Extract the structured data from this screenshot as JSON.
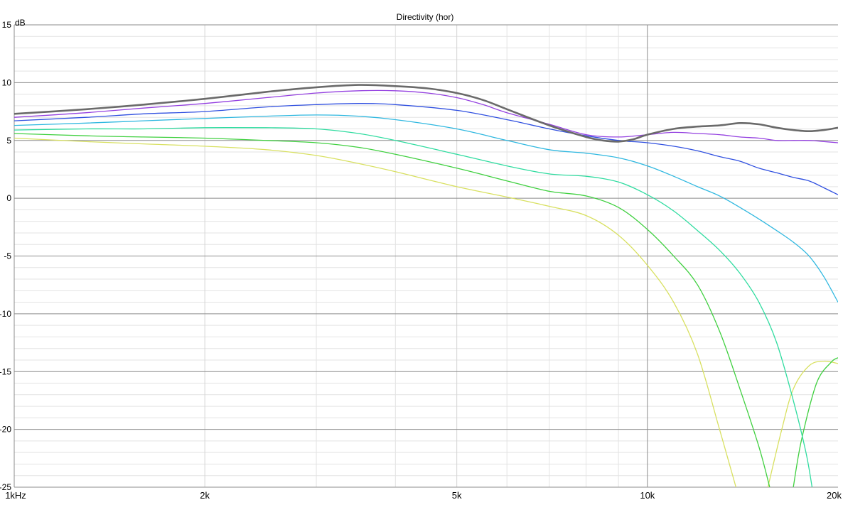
{
  "chart_data": {
    "type": "line",
    "title": "Directivity (hor)",
    "ylabel": "dB",
    "xscale": "log",
    "xlim": [
      1000,
      20000
    ],
    "ylim": [
      -25,
      15
    ],
    "grid": true,
    "y_ticks": [
      {
        "value": 15,
        "label": "15"
      },
      {
        "value": 10,
        "label": "10"
      },
      {
        "value": 5,
        "label": "5"
      },
      {
        "value": 0,
        "label": "0"
      },
      {
        "value": -5,
        "label": "-5"
      },
      {
        "value": -10,
        "label": "-10"
      },
      {
        "value": -15,
        "label": "-15"
      },
      {
        "value": -20,
        "label": "-20"
      },
      {
        "value": -25,
        "label": "-25"
      }
    ],
    "x_ticks": [
      {
        "value": 1000,
        "label": "1kHz"
      },
      {
        "value": 2000,
        "label": "2k"
      },
      {
        "value": 5000,
        "label": "5k"
      },
      {
        "value": 10000,
        "label": "10k"
      },
      {
        "value": 20000,
        "label": "20k"
      }
    ],
    "series": [
      {
        "color": "#d8e060",
        "width": 1.3,
        "points": [
          [
            1000,
            5.2
          ],
          [
            1300,
            4.9
          ],
          [
            1600,
            4.7
          ],
          [
            2000,
            4.5
          ],
          [
            2500,
            4.2
          ],
          [
            3000,
            3.7
          ],
          [
            3500,
            3.0
          ],
          [
            4000,
            2.3
          ],
          [
            5000,
            1.0
          ],
          [
            6000,
            0.1
          ],
          [
            7000,
            -0.7
          ],
          [
            8000,
            -1.5
          ],
          [
            9000,
            -3.2
          ],
          [
            10000,
            -5.8
          ],
          [
            11000,
            -9.0
          ],
          [
            12000,
            -13.5
          ],
          [
            13000,
            -20.0
          ],
          [
            13800,
            -25.0
          ]
        ]
      },
      {
        "color": "#d8e060",
        "width": 1.3,
        "points": [
          [
            15500,
            -25.0
          ],
          [
            16300,
            -20.0
          ],
          [
            17000,
            -16.5
          ],
          [
            18000,
            -14.5
          ],
          [
            19000,
            -14.1
          ],
          [
            20000,
            -14.3
          ]
        ]
      },
      {
        "color": "#40d040",
        "width": 1.3,
        "points": [
          [
            1000,
            5.6
          ],
          [
            1300,
            5.4
          ],
          [
            1600,
            5.3
          ],
          [
            2000,
            5.2
          ],
          [
            2500,
            5.0
          ],
          [
            3000,
            4.8
          ],
          [
            3500,
            4.4
          ],
          [
            4000,
            3.8
          ],
          [
            5000,
            2.6
          ],
          [
            6000,
            1.5
          ],
          [
            7000,
            0.6
          ],
          [
            8000,
            0.2
          ],
          [
            9000,
            -0.8
          ],
          [
            10000,
            -2.7
          ],
          [
            11000,
            -5.0
          ],
          [
            12000,
            -7.5
          ],
          [
            13000,
            -11.5
          ],
          [
            14000,
            -16.5
          ],
          [
            15000,
            -21.5
          ],
          [
            15600,
            -25.0
          ]
        ]
      },
      {
        "color": "#40d040",
        "width": 1.3,
        "points": [
          [
            17000,
            -25.0
          ],
          [
            17500,
            -21.0
          ],
          [
            18500,
            -16.0
          ],
          [
            19500,
            -14.2
          ],
          [
            20000,
            -13.8
          ]
        ]
      },
      {
        "color": "#30dca0",
        "width": 1.3,
        "points": [
          [
            1000,
            5.9
          ],
          [
            1300,
            6.0
          ],
          [
            1600,
            6.0
          ],
          [
            2000,
            6.1
          ],
          [
            2500,
            6.1
          ],
          [
            3000,
            6.0
          ],
          [
            3500,
            5.6
          ],
          [
            4000,
            5.0
          ],
          [
            5000,
            3.8
          ],
          [
            6000,
            2.8
          ],
          [
            7000,
            2.1
          ],
          [
            8000,
            1.9
          ],
          [
            9000,
            1.4
          ],
          [
            10000,
            0.3
          ],
          [
            11000,
            -1.1
          ],
          [
            12000,
            -2.8
          ],
          [
            13000,
            -4.5
          ],
          [
            14000,
            -6.5
          ],
          [
            15000,
            -9.0
          ],
          [
            16000,
            -12.5
          ],
          [
            17000,
            -17.5
          ],
          [
            17800,
            -22.0
          ],
          [
            18200,
            -25.0
          ]
        ]
      },
      {
        "color": "#30b8e0",
        "width": 1.3,
        "points": [
          [
            1000,
            6.3
          ],
          [
            1300,
            6.5
          ],
          [
            1600,
            6.7
          ],
          [
            2000,
            6.9
          ],
          [
            2500,
            7.1
          ],
          [
            3000,
            7.2
          ],
          [
            3500,
            7.1
          ],
          [
            4000,
            6.8
          ],
          [
            5000,
            6.0
          ],
          [
            6000,
            5.0
          ],
          [
            7000,
            4.2
          ],
          [
            8000,
            3.9
          ],
          [
            9000,
            3.5
          ],
          [
            10000,
            2.8
          ],
          [
            11000,
            1.9
          ],
          [
            12000,
            1.0
          ],
          [
            13000,
            0.2
          ],
          [
            14000,
            -0.8
          ],
          [
            15000,
            -1.8
          ],
          [
            16000,
            -2.8
          ],
          [
            17000,
            -3.8
          ],
          [
            18000,
            -5.0
          ],
          [
            19000,
            -6.8
          ],
          [
            20000,
            -9.0
          ]
        ]
      },
      {
        "color": "#3050e0",
        "width": 1.3,
        "points": [
          [
            1000,
            6.7
          ],
          [
            1300,
            7.0
          ],
          [
            1600,
            7.3
          ],
          [
            2000,
            7.5
          ],
          [
            2500,
            7.9
          ],
          [
            3000,
            8.1
          ],
          [
            3500,
            8.2
          ],
          [
            4000,
            8.1
          ],
          [
            5000,
            7.6
          ],
          [
            6000,
            6.8
          ],
          [
            7000,
            6.0
          ],
          [
            8000,
            5.4
          ],
          [
            9000,
            5.0
          ],
          [
            10000,
            4.8
          ],
          [
            11000,
            4.5
          ],
          [
            12000,
            4.1
          ],
          [
            13000,
            3.6
          ],
          [
            14000,
            3.2
          ],
          [
            15000,
            2.6
          ],
          [
            16000,
            2.2
          ],
          [
            17000,
            1.8
          ],
          [
            18000,
            1.5
          ],
          [
            19000,
            0.9
          ],
          [
            20000,
            0.3
          ]
        ]
      },
      {
        "color": "#9440e0",
        "width": 1.3,
        "points": [
          [
            1000,
            7.0
          ],
          [
            1300,
            7.4
          ],
          [
            1600,
            7.8
          ],
          [
            2000,
            8.2
          ],
          [
            2500,
            8.7
          ],
          [
            3000,
            9.1
          ],
          [
            3500,
            9.3
          ],
          [
            4000,
            9.3
          ],
          [
            4500,
            9.1
          ],
          [
            5000,
            8.7
          ],
          [
            5500,
            8.1
          ],
          [
            6000,
            7.4
          ],
          [
            7000,
            6.4
          ],
          [
            8000,
            5.5
          ],
          [
            9000,
            5.3
          ],
          [
            10000,
            5.5
          ],
          [
            11000,
            5.7
          ],
          [
            12000,
            5.6
          ],
          [
            13000,
            5.5
          ],
          [
            14000,
            5.3
          ],
          [
            15000,
            5.2
          ],
          [
            16000,
            5.0
          ],
          [
            17000,
            5.0
          ],
          [
            18000,
            5.0
          ],
          [
            19000,
            4.9
          ],
          [
            20000,
            4.8
          ]
        ]
      },
      {
        "color": "#6a6a6a",
        "width": 2.6,
        "points": [
          [
            1000,
            7.3
          ],
          [
            1300,
            7.7
          ],
          [
            1600,
            8.1
          ],
          [
            2000,
            8.6
          ],
          [
            2500,
            9.2
          ],
          [
            3000,
            9.6
          ],
          [
            3500,
            9.8
          ],
          [
            4000,
            9.7
          ],
          [
            4500,
            9.5
          ],
          [
            5000,
            9.1
          ],
          [
            5500,
            8.5
          ],
          [
            6000,
            7.7
          ],
          [
            7000,
            6.3
          ],
          [
            8000,
            5.3
          ],
          [
            8500,
            5.0
          ],
          [
            9000,
            4.9
          ],
          [
            9500,
            5.1
          ],
          [
            10000,
            5.5
          ],
          [
            11000,
            6.0
          ],
          [
            12000,
            6.2
          ],
          [
            13000,
            6.3
          ],
          [
            14000,
            6.5
          ],
          [
            15000,
            6.4
          ],
          [
            16000,
            6.1
          ],
          [
            17000,
            5.9
          ],
          [
            18000,
            5.8
          ],
          [
            19000,
            5.9
          ],
          [
            20000,
            6.1
          ]
        ]
      }
    ]
  }
}
